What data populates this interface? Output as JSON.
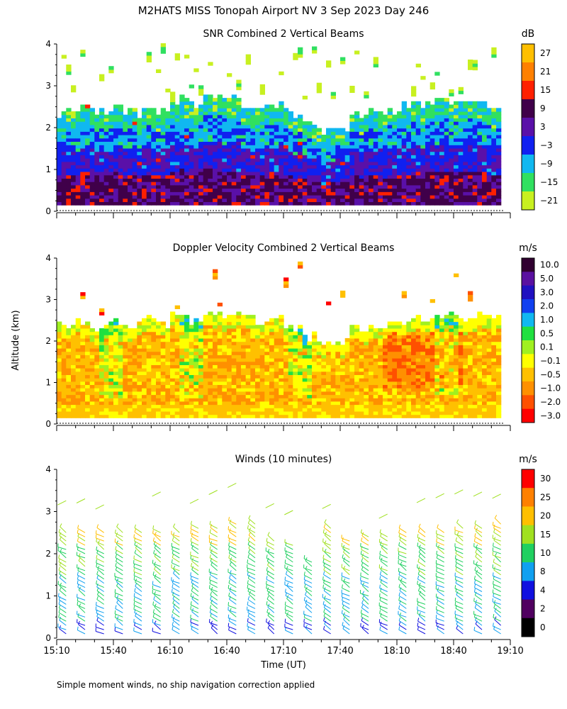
{
  "figure": {
    "title": "M2HATS MISS Tonopah Airport NV   3 Sep 2023 Day 246",
    "ylabel": "Altitude (km)",
    "xlabel": "Time (UT)",
    "footnote": "Simple moment winds, no ship navigation correction applied"
  },
  "chart_data": [
    {
      "type": "heatmap",
      "title": "SNR Combined 2 Vertical Beams",
      "x": {
        "range_minutes": [
          0,
          240
        ],
        "ticks": [
          "15:10",
          "15:40",
          "16:10",
          "16:40",
          "17:10",
          "17:40",
          "18:10",
          "18:40",
          "19:10"
        ]
      },
      "y": {
        "range_km": [
          0,
          4
        ],
        "ticks": [
          "0",
          "1",
          "2",
          "3",
          "4"
        ]
      },
      "colorbar": {
        "units": "dB",
        "labels": [
          "27",
          "21",
          "15",
          "9",
          "3",
          "−3",
          "−9",
          "−15",
          "−21"
        ],
        "colors": [
          "#ffbf00",
          "#ff8000",
          "#ff2000",
          "#40004a",
          "#5a10a8",
          "#1020f0",
          "#10b8f0",
          "#30e060",
          "#c8f020"
        ]
      },
      "features": {
        "main_layer_top_km": 2.3,
        "strong_core_top_km": 1.0,
        "cloud_patches_km": [
          2.6,
          3.4
        ],
        "surface_dotted_line_km": 0.0
      }
    },
    {
      "type": "heatmap",
      "title": "Doppler Velocity Combined 2 Vertical Beams",
      "x": {
        "range_minutes": [
          0,
          240
        ],
        "ticks": [
          "15:10",
          "15:40",
          "16:10",
          "16:40",
          "17:10",
          "17:40",
          "18:10",
          "18:40",
          "19:10"
        ]
      },
      "y": {
        "range_km": [
          0,
          4
        ],
        "ticks": [
          "0",
          "1",
          "2",
          "3",
          "4"
        ]
      },
      "colorbar": {
        "units": "m/s",
        "labels": [
          "10.0",
          "5.0",
          "3.0",
          "2.0",
          "1.0",
          "0.5",
          "0.1",
          "−0.1",
          "−0.5",
          "−1.0",
          "−2.0",
          "−3.0"
        ],
        "colors": [
          "#300030",
          "#5a10a0",
          "#2010c0",
          "#1040f0",
          "#10b8f0",
          "#20e040",
          "#a0f020",
          "#ffff00",
          "#ffc000",
          "#ff9000",
          "#ff5000",
          "#ff0000"
        ]
      },
      "features": {
        "main_layer_top_km": 2.4,
        "updraft_columns_min": [
          30,
          70,
          130,
          210
        ],
        "surface_dotted_line_km": 0.0
      }
    },
    {
      "type": "scatter",
      "title": "Winds (10 minutes)",
      "subtype": "wind_barbs",
      "x": {
        "range_minutes": [
          0,
          240
        ],
        "ticks": [
          "15:10",
          "15:40",
          "16:10",
          "16:40",
          "17:10",
          "17:40",
          "18:10",
          "18:40",
          "19:10"
        ]
      },
      "y": {
        "range_km": [
          0,
          4
        ],
        "ticks": [
          "0",
          "1",
          "2",
          "3",
          "4"
        ]
      },
      "colorbar": {
        "units": "m/s",
        "labels": [
          "30",
          "25",
          "20",
          "15",
          "10",
          "8",
          "4",
          "2",
          "0"
        ],
        "colors": [
          "#ff0000",
          "#ff8000",
          "#ffbf00",
          "#a0e020",
          "#20d060",
          "#10a0f0",
          "#1010e0",
          "#500060",
          "#000000"
        ]
      },
      "profiles": [
        {
          "t": 5,
          "top": 2.6
        },
        {
          "t": 15,
          "top": 2.6
        },
        {
          "t": 25,
          "top": 2.6
        },
        {
          "t": 35,
          "top": 2.6
        },
        {
          "t": 45,
          "top": 2.6
        },
        {
          "t": 55,
          "top": 2.6
        },
        {
          "t": 65,
          "top": 2.6
        },
        {
          "t": 75,
          "top": 2.7
        },
        {
          "t": 85,
          "top": 2.7
        },
        {
          "t": 95,
          "top": 2.8
        },
        {
          "t": 105,
          "top": 2.8
        },
        {
          "t": 115,
          "top": 2.4
        },
        {
          "t": 125,
          "top": 2.3
        },
        {
          "t": 135,
          "top": 1.9
        },
        {
          "t": 145,
          "top": 2.7
        },
        {
          "t": 155,
          "top": 2.4
        },
        {
          "t": 165,
          "top": 2.5
        },
        {
          "t": 175,
          "top": 2.5
        },
        {
          "t": 185,
          "top": 2.6
        },
        {
          "t": 195,
          "top": 2.6
        },
        {
          "t": 205,
          "top": 2.6
        },
        {
          "t": 215,
          "top": 2.7
        },
        {
          "t": 225,
          "top": 2.7
        },
        {
          "t": 235,
          "top": 2.8
        }
      ]
    }
  ]
}
